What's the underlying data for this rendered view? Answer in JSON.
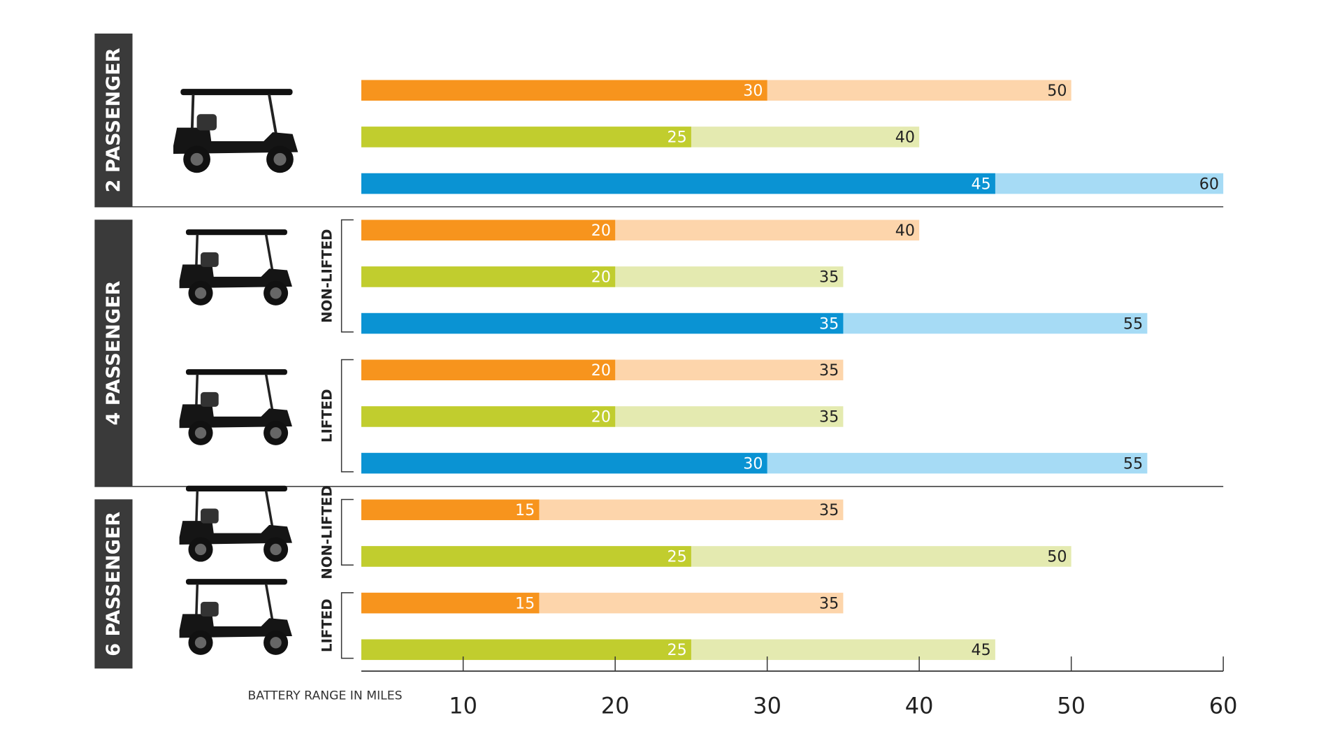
{
  "chart_data": {
    "type": "bar",
    "orientation": "horizontal",
    "x_label": "BATTERY RANGE IN MILES",
    "xlim": [
      3.3,
      60
    ],
    "xticks": [
      10,
      20,
      30,
      40,
      50,
      60
    ],
    "groups": [
      {
        "label": "2 PASSENGER",
        "subgroups": [
          {
            "rows": [
              {
                "low": 30,
                "high": 50,
                "color": "#f7941d",
                "light_color": "#fdd5ab"
              },
              {
                "low": 25,
                "high": 40,
                "color": "#c1cd2e",
                "light_color": "#e4eab0"
              },
              {
                "low": 45,
                "high": 60,
                "color": "#0a93d3",
                "light_color": "#a6dbf5"
              }
            ]
          }
        ]
      },
      {
        "label": "4 PASSENGER",
        "subgroups": [
          {
            "label": "NON-LIFTED",
            "rows": [
              {
                "low": 20,
                "high": 40,
                "color": "#f7941d",
                "light_color": "#fdd5ab"
              },
              {
                "low": 20,
                "high": 35,
                "color": "#c1cd2e",
                "light_color": "#e4eab0"
              },
              {
                "low": 35,
                "high": 55,
                "color": "#0a93d3",
                "light_color": "#a6dbf5"
              }
            ]
          },
          {
            "label": "LIFTED",
            "rows": [
              {
                "low": 20,
                "high": 35,
                "color": "#f7941d",
                "light_color": "#fdd5ab"
              },
              {
                "low": 20,
                "high": 35,
                "color": "#c1cd2e",
                "light_color": "#e4eab0"
              },
              {
                "low": 30,
                "high": 55,
                "color": "#0a93d3",
                "light_color": "#a6dbf5"
              }
            ]
          }
        ]
      },
      {
        "label": "6 PASSENGER",
        "subgroups": [
          {
            "label": "NON-LIFTED",
            "rows": [
              {
                "low": 15,
                "high": 35,
                "color": "#f7941d",
                "light_color": "#fdd5ab"
              },
              {
                "low": 25,
                "high": 50,
                "color": "#c1cd2e",
                "light_color": "#e4eab0"
              }
            ]
          },
          {
            "label": "LIFTED",
            "rows": [
              {
                "low": 15,
                "high": 35,
                "color": "#f7941d",
                "light_color": "#fdd5ab"
              },
              {
                "low": 25,
                "high": 45,
                "color": "#c1cd2e",
                "light_color": "#e4eab0"
              }
            ]
          }
        ]
      }
    ]
  }
}
